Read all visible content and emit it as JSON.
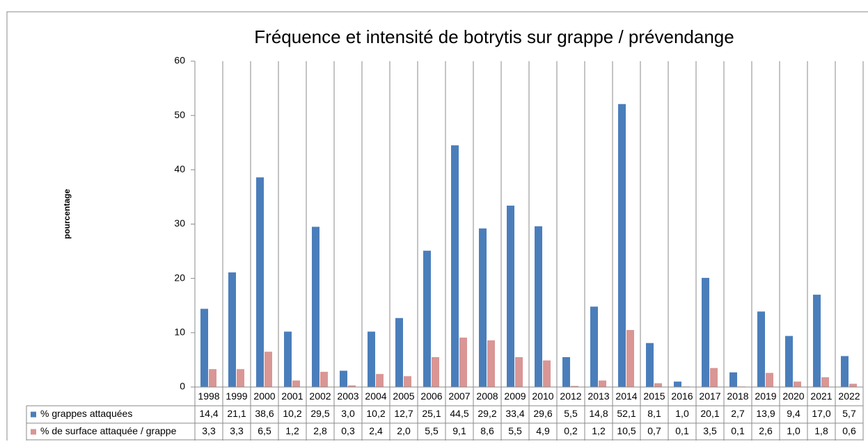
{
  "chart_data": {
    "type": "bar",
    "title": "Fréquence et intensité de botrytis sur grappe / prévendange",
    "y_label": "pourcentage",
    "categories": [
      "1998",
      "1999",
      "2000",
      "2001",
      "2002",
      "2003",
      "2004",
      "2005",
      "2006",
      "2007",
      "2008",
      "2009",
      "2010",
      "2012",
      "2013",
      "2014",
      "2015",
      "2016",
      "2017",
      "2018",
      "2019",
      "2020",
      "2021",
      "2022"
    ],
    "series": [
      {
        "name": "% grappes attaquées",
        "color": "#4a7ebb",
        "values": [
          14.4,
          21.1,
          38.6,
          10.2,
          29.5,
          3.0,
          10.2,
          12.7,
          25.1,
          44.5,
          29.2,
          33.4,
          29.6,
          5.5,
          14.8,
          52.1,
          8.1,
          1.0,
          20.1,
          2.7,
          13.9,
          9.4,
          17.0,
          5.7
        ],
        "value_labels": [
          "14,4",
          "21,1",
          "38,6",
          "10,2",
          "29,5",
          "3,0",
          "10,2",
          "12,7",
          "25,1",
          "44,5",
          "29,2",
          "33,4",
          "29,6",
          "5,5",
          "14,8",
          "52,1",
          "8,1",
          "1,0",
          "20,1",
          "2,7",
          "13,9",
          "9,4",
          "17,0",
          "5,7"
        ]
      },
      {
        "name": "% de surface attaquée / grappe",
        "color": "#d99694",
        "values": [
          3.3,
          3.3,
          6.5,
          1.2,
          2.8,
          0.3,
          2.4,
          2.0,
          5.5,
          9.1,
          8.6,
          5.5,
          4.9,
          0.2,
          1.2,
          10.5,
          0.7,
          0.1,
          3.5,
          0.1,
          2.6,
          1.0,
          1.8,
          0.6
        ],
        "value_labels": [
          "3,3",
          "3,3",
          "6,5",
          "1,2",
          "2,8",
          "0,3",
          "2,4",
          "2,0",
          "5,5",
          "9,1",
          "8,6",
          "5,5",
          "4,9",
          "0,2",
          "1,2",
          "10,5",
          "0,7",
          "0,1",
          "3,5",
          "0,1",
          "2,6",
          "1,0",
          "1,8",
          "0,6"
        ]
      }
    ],
    "ylim": [
      0,
      60
    ],
    "yticks": [
      0,
      10,
      20,
      30,
      40,
      50,
      60
    ]
  }
}
